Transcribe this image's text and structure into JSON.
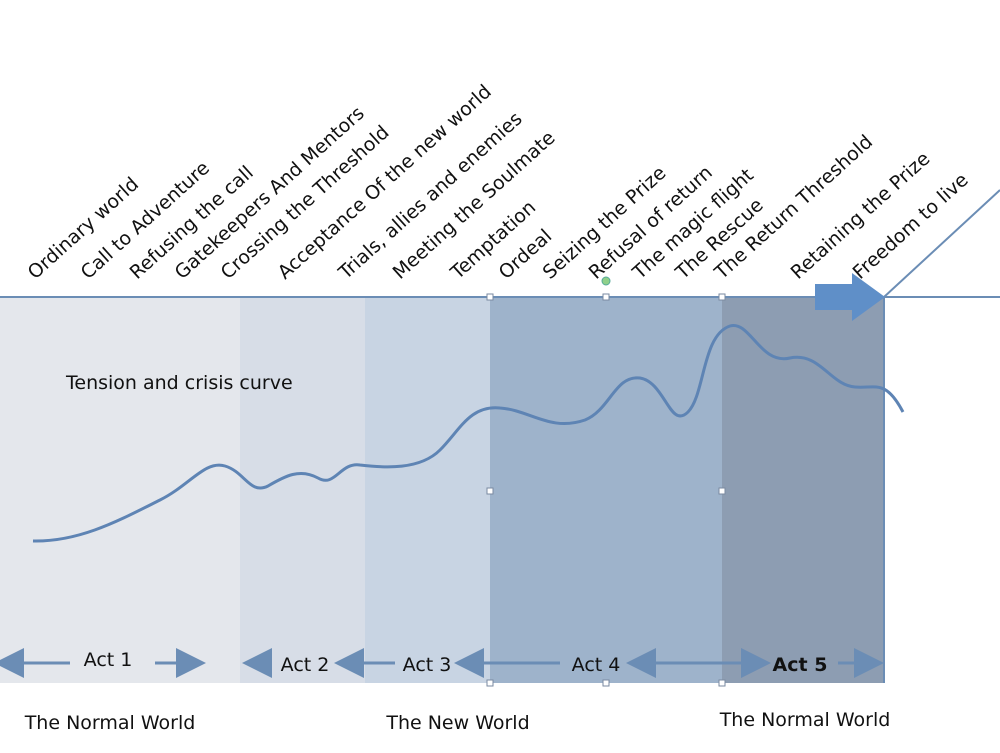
{
  "stages": [
    "Ordinary world",
    "Call to Adventure",
    "Refusing the call",
    "Gatekeepers And Mentors",
    "Crossing the Threshold",
    "Acceptance Of the new world",
    "Trials, allies and enemies",
    "Meeting the Soulmate",
    "Temptation",
    "Ordeal",
    "Seizing the Prize",
    "Refusal of return",
    "The magic flight",
    "The Rescue",
    "The Return Threshold",
    "Retaining the Prize",
    "Freedom to live"
  ],
  "curve_label": "Tension and crisis curve",
  "acts": [
    "Act 1",
    "Act 2",
    "Act 3",
    "Act 4",
    "Act 5"
  ],
  "worlds": [
    "The Normal World",
    "The New World",
    "The Normal World"
  ]
}
